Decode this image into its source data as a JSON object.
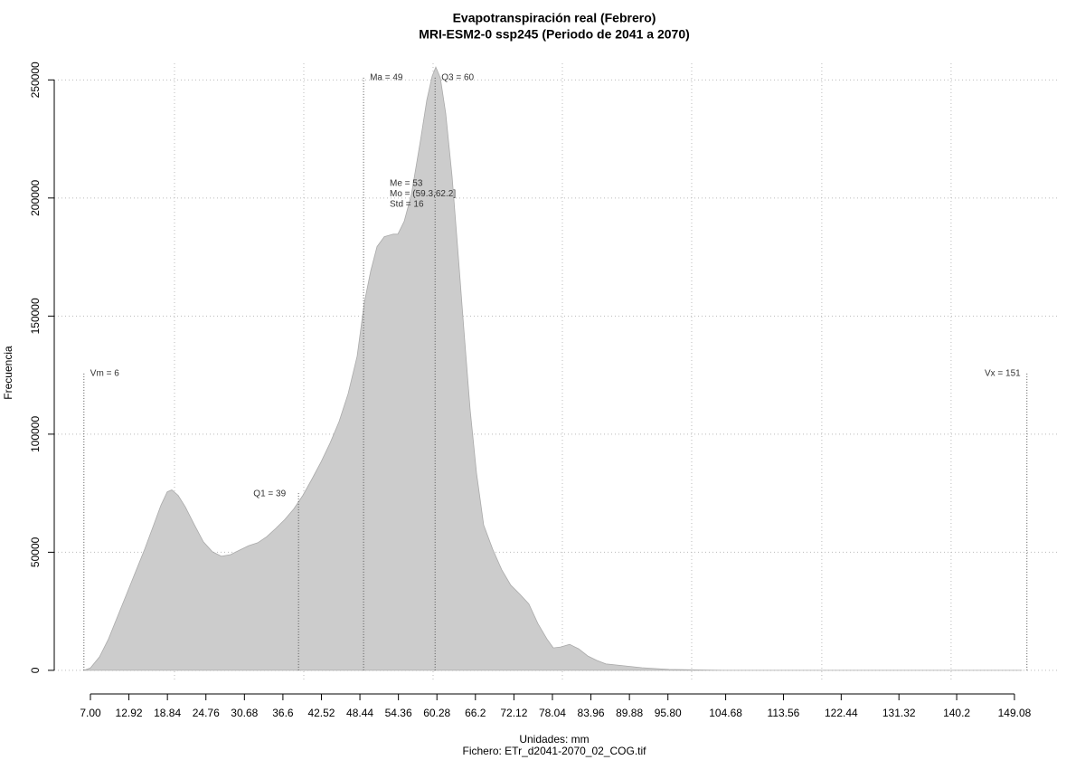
{
  "chart_data": {
    "type": "area",
    "title": "Evapotranspiración real (Febrero)",
    "subtitle": "MRI-ESM2-0 ssp245 (Periodo de 2041 a 2070)",
    "y_label": "Frecuencia",
    "x_label": "Unidades: mm",
    "caption": "Fichero: ETr_d2041-2070_02_COG.tif",
    "color": "#cccccc",
    "grid": true,
    "x": [
      6.03,
      7.0,
      8.39,
      9.78,
      11.17,
      12.56,
      13.95,
      15.34,
      16.73,
      17.84,
      18.82,
      19.51,
      20.49,
      21.6,
      22.99,
      24.38,
      25.77,
      27.16,
      28.55,
      29.94,
      31.33,
      32.72,
      34.11,
      35.5,
      36.89,
      38.28,
      39.67,
      41.06,
      42.45,
      43.84,
      45.23,
      46.62,
      48.01,
      49.12,
      50.1,
      51.07,
      52.18,
      53.57,
      54.27,
      55.24,
      56.35,
      57.74,
      58.72,
      59.55,
      60.11,
      60.8,
      61.64,
      62.61,
      63.58,
      64.42,
      65.39,
      66.36,
      67.47,
      68.86,
      70.25,
      71.64,
      73.03,
      74.42,
      75.81,
      77.2,
      78.18,
      79.29,
      80.68,
      82.07,
      83.46,
      84.85,
      86.24,
      89.02,
      91.8,
      95.97,
      100.14,
      104.31,
      118.2,
      150.2
    ],
    "values": [
      0,
      1000,
      5700,
      13300,
      22800,
      32300,
      41800,
      51300,
      61600,
      69900,
      75600,
      76400,
      74100,
      69200,
      61600,
      54400,
      50200,
      48300,
      49000,
      50900,
      52800,
      54000,
      56600,
      60100,
      63900,
      68400,
      74100,
      81000,
      88200,
      96200,
      105300,
      117100,
      133000,
      155800,
      169100,
      179400,
      183600,
      184700,
      184700,
      190100,
      201500,
      224300,
      241400,
      251600,
      255400,
      250900,
      235700,
      209100,
      174800,
      144400,
      110200,
      83600,
      61600,
      51300,
      42600,
      36100,
      32300,
      28100,
      19800,
      13300,
      9500,
      9900,
      11000,
      9100,
      6100,
      4200,
      2700,
      1900,
      1100,
      400,
      200,
      0,
      0,
      0
    ],
    "xlim": [
      1.44,
      155.76
    ],
    "ylim": [
      -10000,
      262000
    ],
    "xticks": [
      {
        "value": 7,
        "label": "7.00"
      },
      12.92,
      18.84,
      24.76,
      30.68,
      36.6,
      42.52,
      48.44,
      54.36,
      60.28,
      66.2,
      72.12,
      78.04,
      83.96,
      89.88,
      {
        "value": 95.8,
        "label": "95.80"
      },
      104.68,
      113.56,
      122.44,
      131.32,
      140.2,
      149.08
    ],
    "yticks": [
      0,
      50000,
      100000,
      150000,
      200000,
      250000
    ],
    "xgrid": [
      19.93,
      39.81,
      59.69,
      79.57,
      99.45,
      119.46,
      139.34
    ],
    "annotations": [
      {
        "label": "Vm = 6",
        "x": 6
      },
      {
        "label": "Q1 = 39",
        "x": 39
      },
      {
        "label": "Ma = 49",
        "x": 49
      },
      {
        "label": "Q3 = 60",
        "x": 60
      },
      {
        "label": "Vx = 151",
        "x": 151
      }
    ],
    "stats": [
      "Me = 53",
      "Mo = (59.3,62.2]",
      "Std = 16"
    ]
  }
}
